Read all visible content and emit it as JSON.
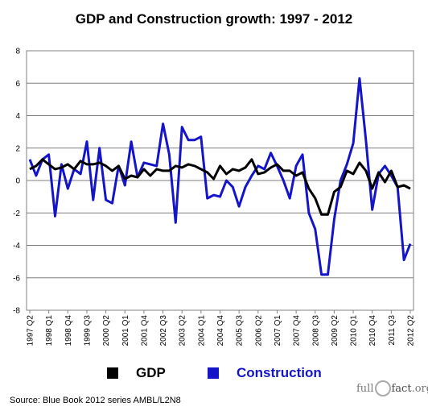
{
  "chart_data": {
    "type": "line",
    "title": "GDP and Construction growth: 1997 - 2012",
    "ylim": [
      -8,
      8
    ],
    "yticks": [
      8,
      6,
      4,
      2,
      0,
      -2,
      -4,
      -6,
      -8
    ],
    "xticks": [
      "1997 Q2",
      "1998 Q1",
      "1998 Q4",
      "1999 Q3",
      "2000 Q2",
      "2001 Q1",
      "2001 Q4",
      "2002 Q3",
      "2003 Q2",
      "2004 Q1",
      "2004 Q4",
      "2005 Q3",
      "2006 Q2",
      "2007 Q1",
      "2007 Q4",
      "2008 Q3",
      "2009 Q2",
      "2010 Q1",
      "2010 Q4",
      "2011 Q3",
      "2012 Q2"
    ],
    "grid": true,
    "legend_position": "bottom",
    "series": [
      {
        "name": "GDP",
        "color": "#000000",
        "values": [
          0.7,
          0.9,
          1.3,
          1.0,
          0.7,
          0.8,
          1.0,
          0.7,
          1.2,
          1.0,
          1.0,
          1.1,
          0.9,
          0.6,
          0.9,
          0.1,
          0.3,
          0.2,
          0.7,
          0.3,
          0.7,
          0.6,
          0.6,
          0.9,
          0.8,
          1.0,
          0.9,
          0.7,
          0.5,
          0.1,
          0.9,
          0.4,
          0.7,
          0.6,
          0.8,
          1.3,
          0.4,
          0.5,
          0.8,
          1.0,
          0.6,
          0.6,
          0.3,
          0.5,
          -0.5,
          -1.1,
          -2.1,
          -2.1,
          -0.7,
          -0.4,
          0.6,
          0.4,
          1.1,
          0.6,
          -0.5,
          0.5,
          -0.1,
          0.6,
          -0.4,
          -0.3,
          -0.5
        ]
      },
      {
        "name": "Construction",
        "color": "#1414c8",
        "values": [
          1.3,
          0.3,
          1.3,
          1.6,
          -2.2,
          1.0,
          -0.5,
          0.7,
          0.4,
          2.4,
          -1.2,
          2.0,
          -1.2,
          -1.4,
          0.9,
          -0.3,
          2.4,
          0.2,
          1.1,
          1.0,
          0.9,
          3.5,
          1.6,
          -2.6,
          3.3,
          2.5,
          2.5,
          2.7,
          -1.1,
          -0.9,
          -1.0,
          0.0,
          -0.4,
          -1.6,
          -0.4,
          0.3,
          0.9,
          0.7,
          1.7,
          0.9,
          0.0,
          -1.1,
          0.9,
          1.6,
          -2.0,
          -3.0,
          -5.8,
          -5.8,
          -2.4,
          0.0,
          1.0,
          2.3,
          6.3,
          2.5,
          -1.8,
          0.4,
          0.9,
          0.3,
          -0.4,
          -4.9,
          -3.9
        ]
      }
    ]
  },
  "legend": {
    "gdp_label": "GDP",
    "construction_label": "Construction"
  },
  "source": "Source: Blue Book 2012 series AMBL/L2N8",
  "logo": {
    "part1": "full",
    "part2": "fact",
    "part3": ".org"
  }
}
